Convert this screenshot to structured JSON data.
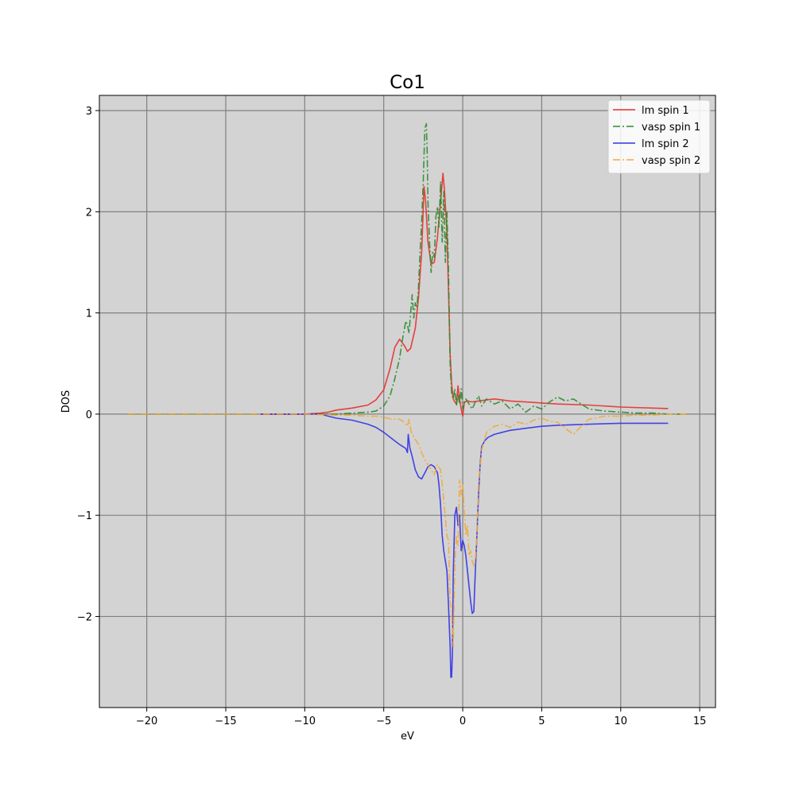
{
  "chart_data": {
    "type": "line",
    "title": "Co1",
    "xlabel": "eV",
    "ylabel": "DOS",
    "xlim": [
      -23,
      16
    ],
    "ylim": [
      -2.9,
      3.15
    ],
    "xticks": [
      -20,
      -15,
      -10,
      -5,
      0,
      5,
      10,
      15
    ],
    "xtick_labels": [
      "−20",
      "−15",
      "−10",
      "−5",
      "0",
      "5",
      "10",
      "15"
    ],
    "yticks": [
      -2,
      -1,
      0,
      1,
      2,
      3
    ],
    "ytick_labels": [
      "−2",
      "−1",
      "0",
      "1",
      "2",
      "3"
    ],
    "grid": true,
    "background": "#d3d3d3",
    "grid_color": "#808080",
    "legend_position": "top-right",
    "series": [
      {
        "name": "lm spin 1",
        "color": "#e8302e",
        "style": "solid",
        "x": [
          -12.8,
          -10,
          -9,
          -8.5,
          -8,
          -7,
          -6,
          -5.5,
          -5,
          -4.6,
          -4.3,
          -4.0,
          -3.7,
          -3.5,
          -3.3,
          -3.0,
          -2.8,
          -2.6,
          -2.45,
          -2.35,
          -2.2,
          -2.0,
          -1.8,
          -1.6,
          -1.4,
          -1.25,
          -1.15,
          -1.0,
          -0.9,
          -0.8,
          -0.7,
          -0.6,
          -0.5,
          -0.4,
          -0.3,
          -0.2,
          -0.1,
          0,
          0.1,
          0.3,
          0.6,
          1.0,
          1.5,
          2.0,
          2.5,
          3.0,
          4.0,
          5.0,
          6.0,
          8.0,
          10.0,
          13.0
        ],
        "y": [
          0,
          0,
          0.01,
          0.02,
          0.04,
          0.06,
          0.09,
          0.14,
          0.24,
          0.45,
          0.66,
          0.74,
          0.68,
          0.62,
          0.65,
          0.85,
          1.15,
          1.6,
          2.25,
          2.1,
          1.7,
          1.48,
          1.5,
          1.75,
          2.1,
          2.38,
          2.2,
          1.8,
          1.2,
          0.6,
          0.3,
          0.15,
          0.12,
          0.1,
          0.28,
          0.15,
          0.05,
          -0.02,
          0.12,
          0.13,
          0.12,
          0.13,
          0.14,
          0.15,
          0.14,
          0.13,
          0.12,
          0.11,
          0.1,
          0.09,
          0.07,
          0.055
        ]
      },
      {
        "name": "vasp spin 1",
        "color": "#2e8b2e",
        "style": "dashdot",
        "x": [
          -21.2,
          -15,
          -10,
          -8,
          -7,
          -6,
          -5.5,
          -5.0,
          -4.6,
          -4.3,
          -4.0,
          -3.8,
          -3.6,
          -3.5,
          -3.4,
          -3.3,
          -3.2,
          -3.1,
          -3.0,
          -2.9,
          -2.8,
          -2.7,
          -2.6,
          -2.5,
          -2.4,
          -2.3,
          -2.25,
          -2.2,
          -2.1,
          -2.0,
          -1.9,
          -1.8,
          -1.7,
          -1.6,
          -1.5,
          -1.4,
          -1.3,
          -1.2,
          -1.1,
          -1.0,
          -0.9,
          -0.8,
          -0.7,
          -0.6,
          -0.5,
          -0.4,
          -0.3,
          -0.2,
          -0.1,
          0,
          0.2,
          0.4,
          0.6,
          0.8,
          1.0,
          1.2,
          1.5,
          2.0,
          2.5,
          3.0,
          3.5,
          4.0,
          4.5,
          5.0,
          5.5,
          6.0,
          6.5,
          7.0,
          7.5,
          8.0,
          9.0,
          10.0,
          11.0,
          12.0,
          13.0,
          14.2
        ],
        "y": [
          0,
          0,
          0,
          0.0,
          0.01,
          0.02,
          0.03,
          0.08,
          0.18,
          0.35,
          0.55,
          0.75,
          0.92,
          0.88,
          0.8,
          1.0,
          1.18,
          0.95,
          1.1,
          1.05,
          1.25,
          1.6,
          1.9,
          2.3,
          2.82,
          2.87,
          2.6,
          2.1,
          1.7,
          1.4,
          1.6,
          1.55,
          1.95,
          2.05,
          1.85,
          2.3,
          1.7,
          2.2,
          1.5,
          2.0,
          1.4,
          0.5,
          0.2,
          0.15,
          0.25,
          0.08,
          0.2,
          0.1,
          0.25,
          0.05,
          0.15,
          0.1,
          0.05,
          0.12,
          0.18,
          0.08,
          0.15,
          0.1,
          0.13,
          0.05,
          0.1,
          0.02,
          0.08,
          0.05,
          0.12,
          0.17,
          0.13,
          0.15,
          0.1,
          0.05,
          0.03,
          0.02,
          0.01,
          0.01,
          0.0,
          0.0
        ]
      },
      {
        "name": "lm spin 2",
        "color": "#3232e6",
        "style": "solid",
        "x": [
          -12.8,
          -10,
          -9,
          -8.5,
          -8,
          -7,
          -6,
          -5.5,
          -5,
          -4.5,
          -4.0,
          -3.6,
          -3.5,
          -3.45,
          -3.35,
          -3.2,
          -3.0,
          -2.8,
          -2.6,
          -2.4,
          -2.2,
          -2.0,
          -1.8,
          -1.6,
          -1.5,
          -1.4,
          -1.3,
          -1.2,
          -1.1,
          -1.0,
          -0.9,
          -0.8,
          -0.75,
          -0.7,
          -0.65,
          -0.6,
          -0.5,
          -0.4,
          -0.3,
          -0.2,
          -0.1,
          0,
          0.1,
          0.2,
          0.3,
          0.4,
          0.5,
          0.6,
          0.7,
          0.8,
          0.9,
          1.0,
          1.1,
          1.2,
          1.4,
          1.6,
          2.0,
          2.5,
          3.0,
          4.0,
          5.0,
          6.0,
          8.0,
          10.0,
          13.0
        ],
        "y": [
          0,
          0,
          0,
          -0.02,
          -0.04,
          -0.06,
          -0.1,
          -0.13,
          -0.18,
          -0.24,
          -0.3,
          -0.34,
          -0.38,
          -0.2,
          -0.33,
          -0.42,
          -0.55,
          -0.62,
          -0.64,
          -0.58,
          -0.52,
          -0.5,
          -0.52,
          -0.58,
          -0.7,
          -0.9,
          -1.2,
          -1.35,
          -1.45,
          -1.55,
          -1.9,
          -2.3,
          -2.6,
          -2.6,
          -2.35,
          -1.6,
          -1.0,
          -0.92,
          -1.1,
          -1.0,
          -1.35,
          -1.25,
          -1.3,
          -1.4,
          -1.55,
          -1.7,
          -1.85,
          -1.97,
          -1.95,
          -1.55,
          -1.2,
          -0.8,
          -0.5,
          -0.32,
          -0.26,
          -0.23,
          -0.2,
          -0.18,
          -0.16,
          -0.14,
          -0.12,
          -0.11,
          -0.1,
          -0.09,
          -0.09
        ]
      },
      {
        "name": "vasp spin 2",
        "color": "#f2a93b",
        "style": "dashdot",
        "x": [
          -21.2,
          -15,
          -10,
          -8,
          -7,
          -6,
          -5.5,
          -5.0,
          -4.5,
          -4.0,
          -3.7,
          -3.5,
          -3.4,
          -3.3,
          -3.2,
          -3.0,
          -2.8,
          -2.6,
          -2.4,
          -2.2,
          -2.0,
          -1.8,
          -1.6,
          -1.4,
          -1.2,
          -1.0,
          -0.9,
          -0.8,
          -0.7,
          -0.6,
          -0.5,
          -0.4,
          -0.3,
          -0.2,
          -0.1,
          0,
          0.1,
          0.2,
          0.3,
          0.4,
          0.5,
          0.6,
          0.7,
          0.8,
          0.9,
          1.0,
          1.2,
          1.5,
          2.0,
          2.5,
          3.0,
          3.5,
          4.0,
          4.5,
          5.0,
          5.5,
          6.0,
          6.5,
          7.0,
          7.5,
          8.0,
          9.0,
          10.0,
          11.0,
          12.0,
          13.0,
          14.2
        ],
        "y": [
          0,
          0,
          0,
          -0.01,
          -0.01,
          -0.02,
          -0.02,
          -0.03,
          -0.05,
          -0.05,
          -0.08,
          -0.12,
          -0.05,
          -0.15,
          -0.2,
          -0.25,
          -0.3,
          -0.38,
          -0.45,
          -0.5,
          -0.55,
          -0.6,
          -0.5,
          -0.55,
          -0.85,
          -1.2,
          -1.25,
          -1.85,
          -1.95,
          -2.3,
          -1.5,
          -1.2,
          -1.3,
          -0.65,
          -0.8,
          -0.7,
          -0.95,
          -1.2,
          -1.1,
          -1.4,
          -1.35,
          -1.45,
          -1.5,
          -1.45,
          -1.2,
          -0.7,
          -0.35,
          -0.18,
          -0.12,
          -0.1,
          -0.13,
          -0.08,
          -0.1,
          -0.06,
          -0.04,
          -0.07,
          -0.08,
          -0.14,
          -0.2,
          -0.12,
          -0.05,
          -0.02,
          -0.02,
          -0.01,
          -0.01,
          0.0,
          0.0
        ]
      }
    ]
  }
}
